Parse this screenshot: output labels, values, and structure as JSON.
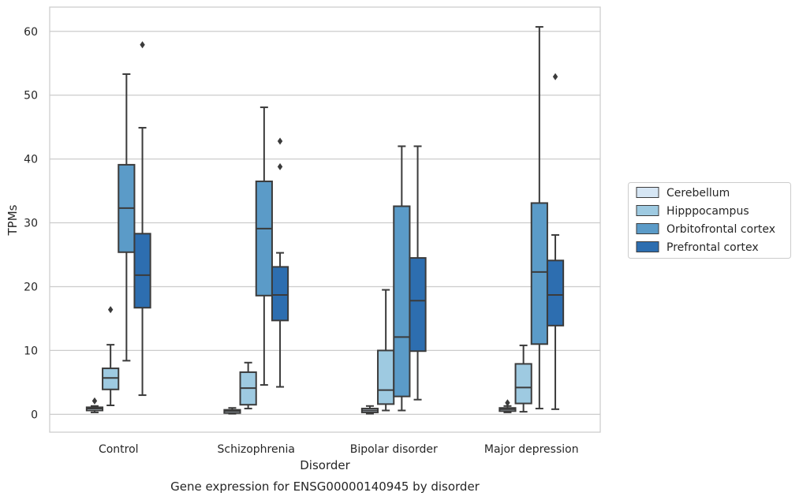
{
  "caption": "Gene expression for ENSG00000140945 by disorder",
  "chart_data": {
    "type": "box",
    "title": "",
    "xlabel": "Disorder",
    "ylabel": "TPMs",
    "ylim": [
      -2.8,
      63.8
    ],
    "yticks": [
      0,
      10,
      20,
      30,
      40,
      50,
      60
    ],
    "grid": true,
    "legend_position": "right",
    "categories": [
      "Control",
      "Schizophrenia",
      "Bipolar disorder",
      "Major depression"
    ],
    "series": [
      {
        "name": "Cerebellum",
        "color": "#d6e6f4",
        "boxes": [
          {
            "whisker_low": 0.3,
            "q1": 0.6,
            "median": 0.9,
            "q3": 1.1,
            "whisker_high": 1.3,
            "outliers": [
              2.1
            ]
          },
          {
            "whisker_low": 0.1,
            "q1": 0.2,
            "median": 0.5,
            "q3": 0.7,
            "whisker_high": 1.0,
            "outliers": []
          },
          {
            "whisker_low": 0.1,
            "q1": 0.3,
            "median": 0.6,
            "q3": 0.9,
            "whisker_high": 1.3,
            "outliers": []
          },
          {
            "whisker_low": 0.3,
            "q1": 0.5,
            "median": 0.8,
            "q3": 1.0,
            "whisker_high": 1.3,
            "outliers": [
              1.8
            ]
          }
        ]
      },
      {
        "name": "Hipppocampus",
        "color": "#9ecae1",
        "boxes": [
          {
            "whisker_low": 1.4,
            "q1": 3.9,
            "median": 5.7,
            "q3": 7.2,
            "whisker_high": 10.9,
            "outliers": [
              16.4
            ]
          },
          {
            "whisker_low": 0.9,
            "q1": 1.5,
            "median": 4.1,
            "q3": 6.6,
            "whisker_high": 8.1,
            "outliers": []
          },
          {
            "whisker_low": 0.6,
            "q1": 1.6,
            "median": 3.8,
            "q3": 10.0,
            "whisker_high": 19.5,
            "outliers": []
          },
          {
            "whisker_low": 0.4,
            "q1": 1.7,
            "median": 4.2,
            "q3": 7.9,
            "whisker_high": 10.8,
            "outliers": []
          }
        ]
      },
      {
        "name": "Orbitofrontal cortex",
        "color": "#5b9bc8",
        "boxes": [
          {
            "whisker_low": 8.4,
            "q1": 25.4,
            "median": 32.3,
            "q3": 39.1,
            "whisker_high": 53.3,
            "outliers": []
          },
          {
            "whisker_low": 4.6,
            "q1": 18.6,
            "median": 29.1,
            "q3": 36.5,
            "whisker_high": 48.1,
            "outliers": []
          },
          {
            "whisker_low": 0.6,
            "q1": 2.8,
            "median": 12.1,
            "q3": 32.6,
            "whisker_high": 42.0,
            "outliers": []
          },
          {
            "whisker_low": 0.9,
            "q1": 11.0,
            "median": 22.3,
            "q3": 33.1,
            "whisker_high": 60.7,
            "outliers": []
          }
        ]
      },
      {
        "name": "Prefrontal cortex",
        "color": "#2d6eb0",
        "boxes": [
          {
            "whisker_low": 3.0,
            "q1": 16.7,
            "median": 21.8,
            "q3": 28.3,
            "whisker_high": 44.9,
            "outliers": [
              57.9
            ]
          },
          {
            "whisker_low": 4.3,
            "q1": 14.7,
            "median": 18.7,
            "q3": 23.1,
            "whisker_high": 25.3,
            "outliers": [
              38.8,
              42.8
            ]
          },
          {
            "whisker_low": 2.3,
            "q1": 9.9,
            "median": 17.8,
            "q3": 24.5,
            "whisker_high": 42.0,
            "outliers": []
          },
          {
            "whisker_low": 0.8,
            "q1": 13.9,
            "median": 18.7,
            "q3": 24.1,
            "whisker_high": 28.1,
            "outliers": [
              52.9
            ]
          }
        ]
      }
    ]
  }
}
